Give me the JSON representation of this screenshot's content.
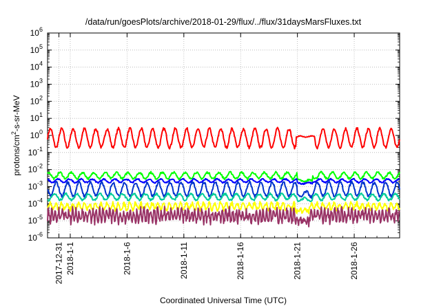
{
  "chart_data": {
    "type": "line",
    "title": "/data/run/goesPlots/archive/2018-01-29/flux/../flux/31daysMarsFluxes.txt",
    "xlabel": "Coordinated Universal Time (UTC)",
    "ylabel": {
      "base": "protons/cm",
      "sup": "2",
      "rest": "-s-sr-MeV"
    },
    "yscale": "log",
    "ylim": [
      1e-06,
      1000000.0
    ],
    "y_ticks": [
      {
        "value": 1e-06,
        "base": "10",
        "exp": "-6"
      },
      {
        "value": 1e-05,
        "base": "10",
        "exp": "-5"
      },
      {
        "value": 0.0001,
        "base": "10",
        "exp": "-4"
      },
      {
        "value": 0.001,
        "base": "10",
        "exp": "-3"
      },
      {
        "value": 0.01,
        "base": "10",
        "exp": "-2"
      },
      {
        "value": 0.1,
        "base": "10",
        "exp": "-1"
      },
      {
        "value": 1,
        "base": "10",
        "exp": "0"
      },
      {
        "value": 10,
        "base": "10",
        "exp": "1"
      },
      {
        "value": 100,
        "base": "10",
        "exp": "2"
      },
      {
        "value": 1000,
        "base": "10",
        "exp": "3"
      },
      {
        "value": 10000,
        "base": "10",
        "exp": "4"
      },
      {
        "value": 100000,
        "base": "10",
        "exp": "5"
      },
      {
        "value": 1000000,
        "base": "10",
        "exp": "6"
      }
    ],
    "xlim": [
      "2017-12-30",
      "2018-01-30"
    ],
    "x_ticks": [
      "2017-12-31",
      "2018-1-1",
      "2018-1-6",
      "2018-1-11",
      "2018-1-16",
      "2018-1-21",
      "2018-1-26"
    ],
    "x_tick_days": [
      1,
      2,
      7,
      12,
      17,
      22,
      27
    ],
    "x_range_days": [
      0,
      31
    ],
    "grid": true,
    "legend": "none",
    "series": [
      {
        "color": "#ff0000",
        "level": 0.7,
        "amp": 0.55,
        "period": 1.0,
        "noise": 0.08,
        "width": 2.0,
        "gap": [
          21.9,
          23.5
        ],
        "gapLevel": 0.85
      },
      {
        "color": "#00ff00",
        "level": 0.0045,
        "amp": 0.18,
        "period": 1.0,
        "noise": 0.06,
        "width": 2.0,
        "dip": [
          22.0,
          23.3
        ],
        "dipLevel": 0.0022
      },
      {
        "color": "#0000ff",
        "level": 0.0022,
        "amp": 0.1,
        "period": 1.0,
        "noise": 0.04,
        "width": 2.0,
        "dip": [
          22.0,
          23.3
        ],
        "dipLevel": 0.0016
      },
      {
        "color": "#0033cc",
        "level": 0.0007,
        "amp": 0.4,
        "period": 1.0,
        "noise": 0.08,
        "width": 2.0,
        "dip": [
          22.0,
          23.3
        ],
        "dipLevel": 0.00035
      },
      {
        "color": "#00cc99",
        "level": 0.00025,
        "amp": 0.18,
        "period": 1.0,
        "noise": 0.06,
        "width": 2.0,
        "dip": [
          22.0,
          23.3
        ],
        "dipLevel": 0.00018
      },
      {
        "color": "#ffff00",
        "level": 7e-05,
        "amp": 0.18,
        "period": 0.5,
        "noise": 0.12,
        "width": 2.0,
        "dip": [
          21.8,
          23.0
        ],
        "dipLevel": 4e-05
      },
      {
        "color": "#993366",
        "level": 2e-05,
        "amp": 0.3,
        "period": 0.3,
        "noise": 0.25,
        "width": 2.0,
        "dip": [
          21.8,
          23.0
        ],
        "dipLevel": 9e-06
      }
    ]
  }
}
